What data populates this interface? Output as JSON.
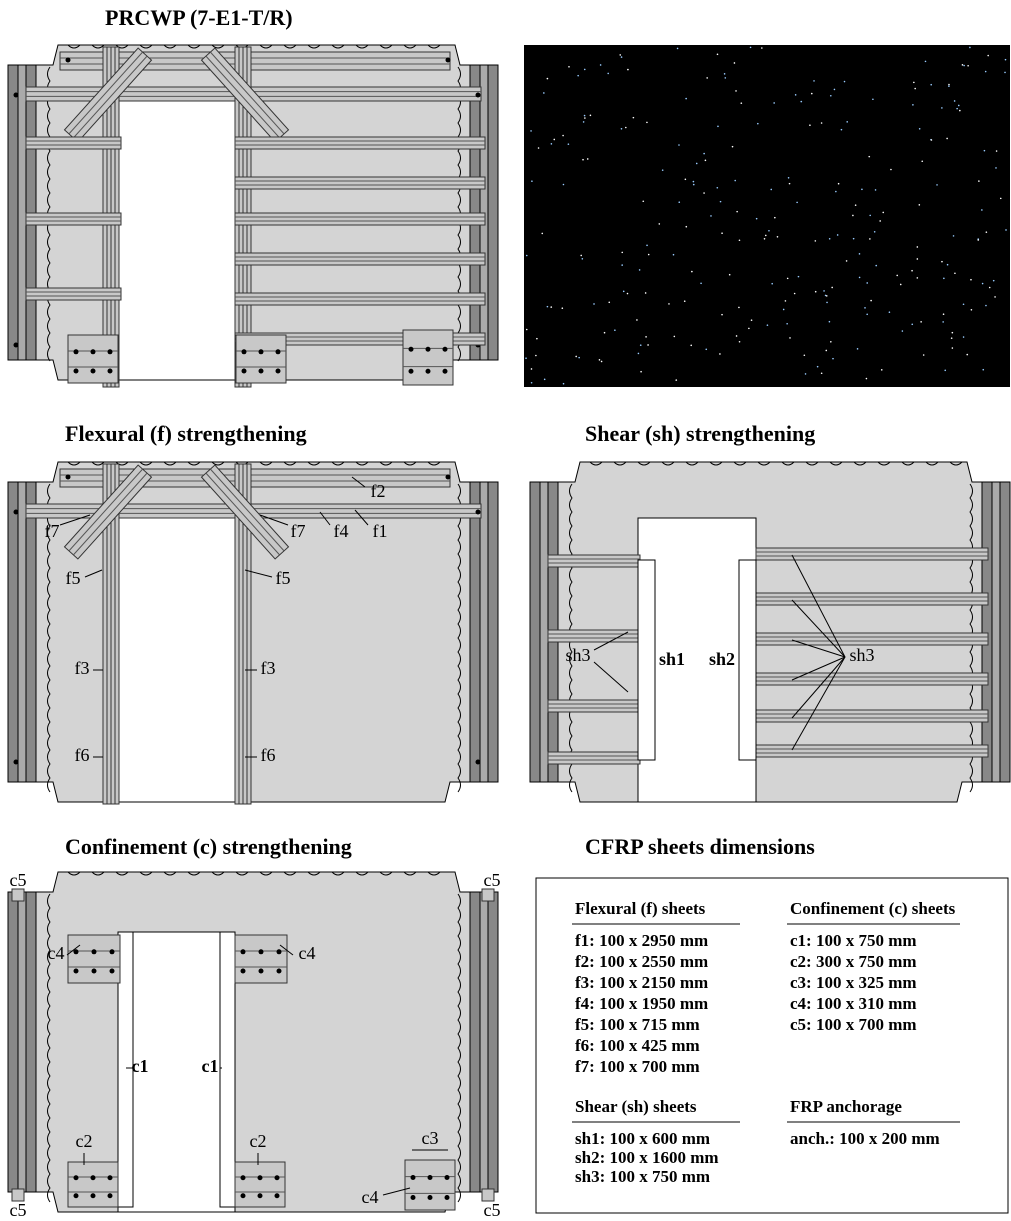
{
  "titles": {
    "prcwp": "PRCWP (7-E1-T/R)",
    "flexural": "Flexural (f) strengthening",
    "shear": "Shear (sh) strengthening",
    "confinement": "Confinement (c) strengthening",
    "dimensions": "CFRP sheets dimensions"
  },
  "flexural_labels": [
    "f2",
    "f7",
    "f7",
    "f4",
    "f1",
    "f5",
    "f5",
    "f3",
    "f3",
    "f6",
    "f6"
  ],
  "shear_labels": [
    "sh3",
    "sh1",
    "sh2",
    "sh3"
  ],
  "confinement_labels": [
    "c5",
    "c5",
    "c5",
    "c5",
    "c4",
    "c4",
    "c1",
    "c1",
    "c2",
    "c2",
    "c3",
    "c4"
  ],
  "dimensions": {
    "groups": [
      {
        "heading": "Flexural (f) sheets",
        "items": [
          "f1: 100 x 2950 mm",
          "f2: 100 x 2550 mm",
          "f3: 100 x 2150 mm",
          "f4: 100 x 1950 mm",
          "f5: 100 x 715 mm",
          "f6: 100 x 425 mm",
          "f7: 100 x 700 mm"
        ]
      },
      {
        "heading": "Confinement (c) sheets",
        "items": [
          "c1: 100 x 750 mm",
          "c2: 300 x 750 mm",
          "c3: 100 x 325 mm",
          "c4: 100 x 310 mm",
          "c5: 100 x 700 mm"
        ]
      },
      {
        "heading": "Shear (sh) sheets",
        "items": [
          "sh1: 100 x 600 mm",
          "sh2: 100 x 1600 mm",
          "sh3: 100 x 750 mm"
        ]
      },
      {
        "heading": "FRP anchorage",
        "items": [
          "anch.: 100 x 200 mm"
        ]
      }
    ]
  }
}
